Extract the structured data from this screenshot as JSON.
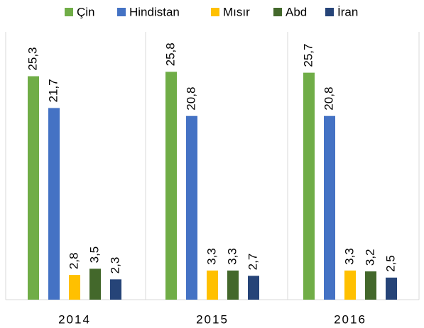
{
  "chart_data": {
    "type": "bar",
    "categories": [
      "2014",
      "2015",
      "2016"
    ],
    "series": [
      {
        "name": "Çin",
        "color": "#70ad47",
        "values": [
          25.3,
          25.8,
          25.7
        ],
        "value_labels": [
          "25,3",
          "25,8",
          "25,7"
        ]
      },
      {
        "name": "Hindistan",
        "color": "#4472c4",
        "values": [
          21.7,
          20.8,
          20.8
        ],
        "value_labels": [
          "21,7",
          "20,8",
          "20,8"
        ]
      },
      {
        "name": "Mısır",
        "color": "#ffc000",
        "values": [
          2.8,
          3.3,
          3.3
        ],
        "value_labels": [
          "2,8",
          "3,3",
          "3,3"
        ]
      },
      {
        "name": "Abd",
        "color": "#43682b",
        "values": [
          3.5,
          3.3,
          3.2
        ],
        "value_labels": [
          "3,5",
          "3,3",
          "3,2"
        ]
      },
      {
        "name": "İran",
        "color": "#264478",
        "values": [
          2.3,
          2.7,
          2.5
        ],
        "value_labels": [
          "2,3",
          "2,7",
          "2,5"
        ]
      }
    ],
    "ylim": [
      0,
      30
    ],
    "legend": "top"
  }
}
